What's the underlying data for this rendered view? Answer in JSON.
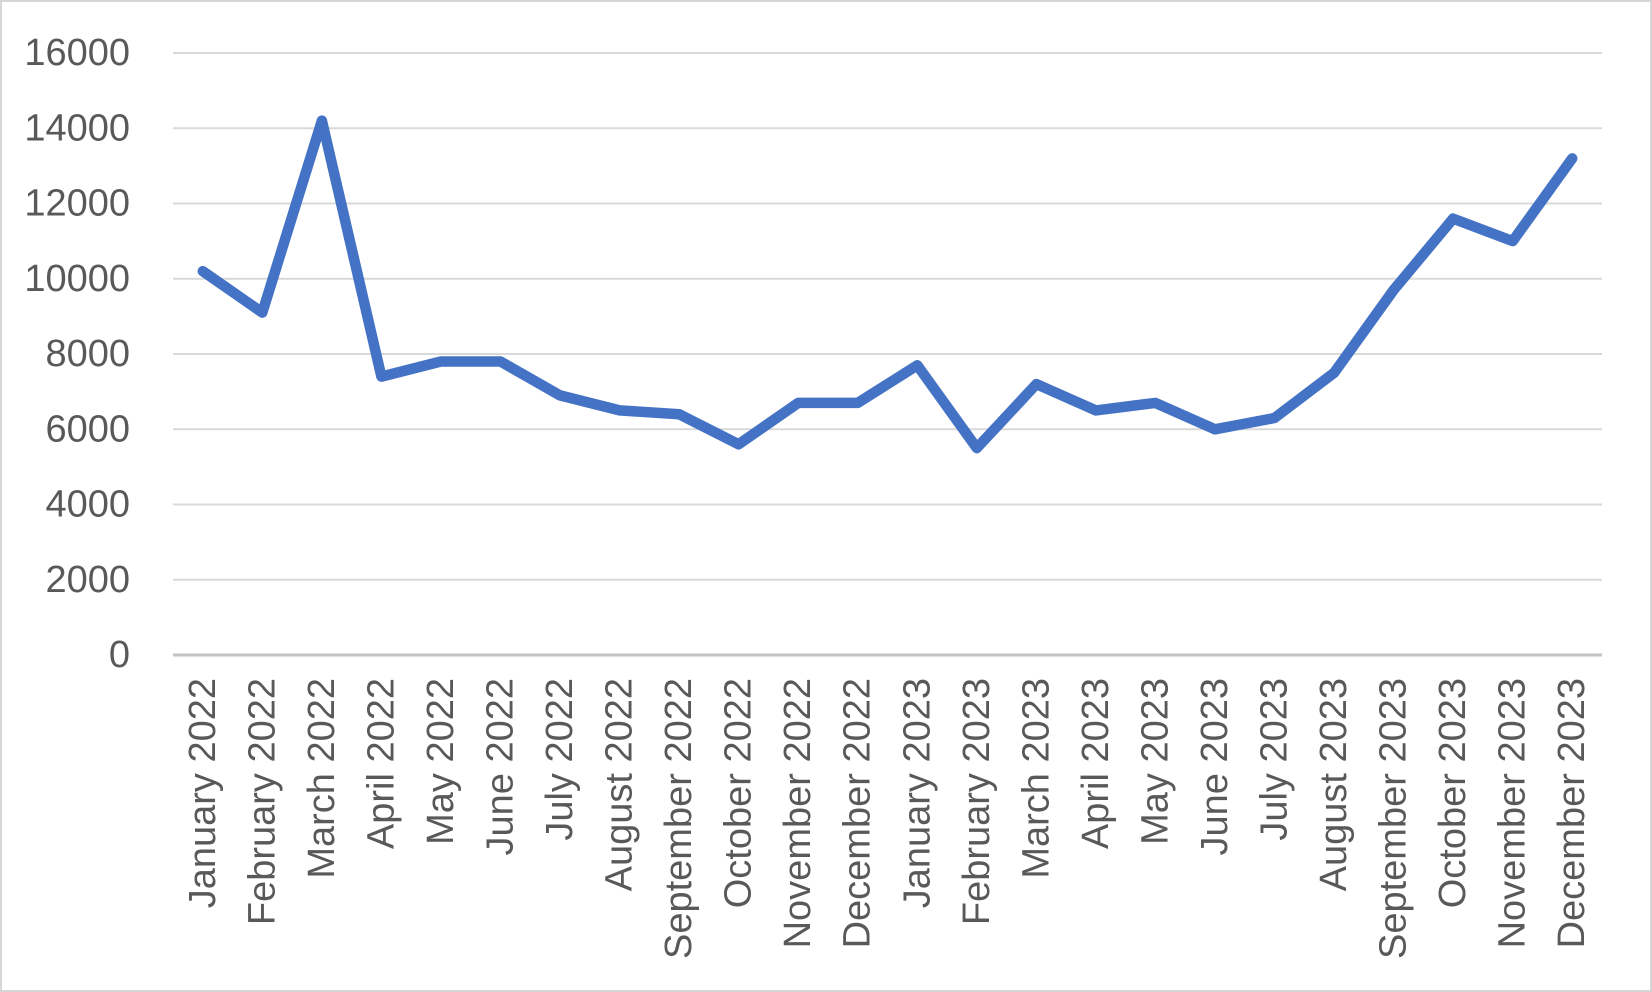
{
  "chart_data": {
    "type": "line",
    "title": "",
    "xlabel": "",
    "ylabel": "",
    "legend": "none",
    "grid": "horizontal",
    "categories": [
      "January 2022",
      "February 2022",
      "March 2022",
      "April 2022",
      "May 2022",
      "June 2022",
      "July 2022",
      "August 2022",
      "September 2022",
      "October 2022",
      "November 2022",
      "December 2022",
      "January 2023",
      "February 2023",
      "March 2023",
      "April 2023",
      "May 2023",
      "June 2023",
      "July 2023",
      "August 2023",
      "September 2023",
      "October 2023",
      "November 2023",
      "December 2023"
    ],
    "values": [
      10200,
      9100,
      14200,
      7400,
      7800,
      7800,
      6900,
      6500,
      6400,
      5600,
      6700,
      6700,
      7700,
      5500,
      7200,
      6500,
      6700,
      6000,
      6300,
      7500,
      9700,
      11600,
      11000,
      13200
    ],
    "ylim": [
      0,
      16000
    ],
    "ytick_interval": 2000,
    "ytick_labels": [
      "0",
      "2000",
      "4000",
      "6000",
      "8000",
      "10000",
      "12000",
      "14000",
      "16000"
    ],
    "colors": {
      "line": "#4472C4",
      "gridline": "#D9D9D9",
      "axis_line": "#C3C3C3",
      "tick_label": "#595959",
      "background": "#FFFFFF",
      "frame_border": "#D6D6D6"
    }
  }
}
